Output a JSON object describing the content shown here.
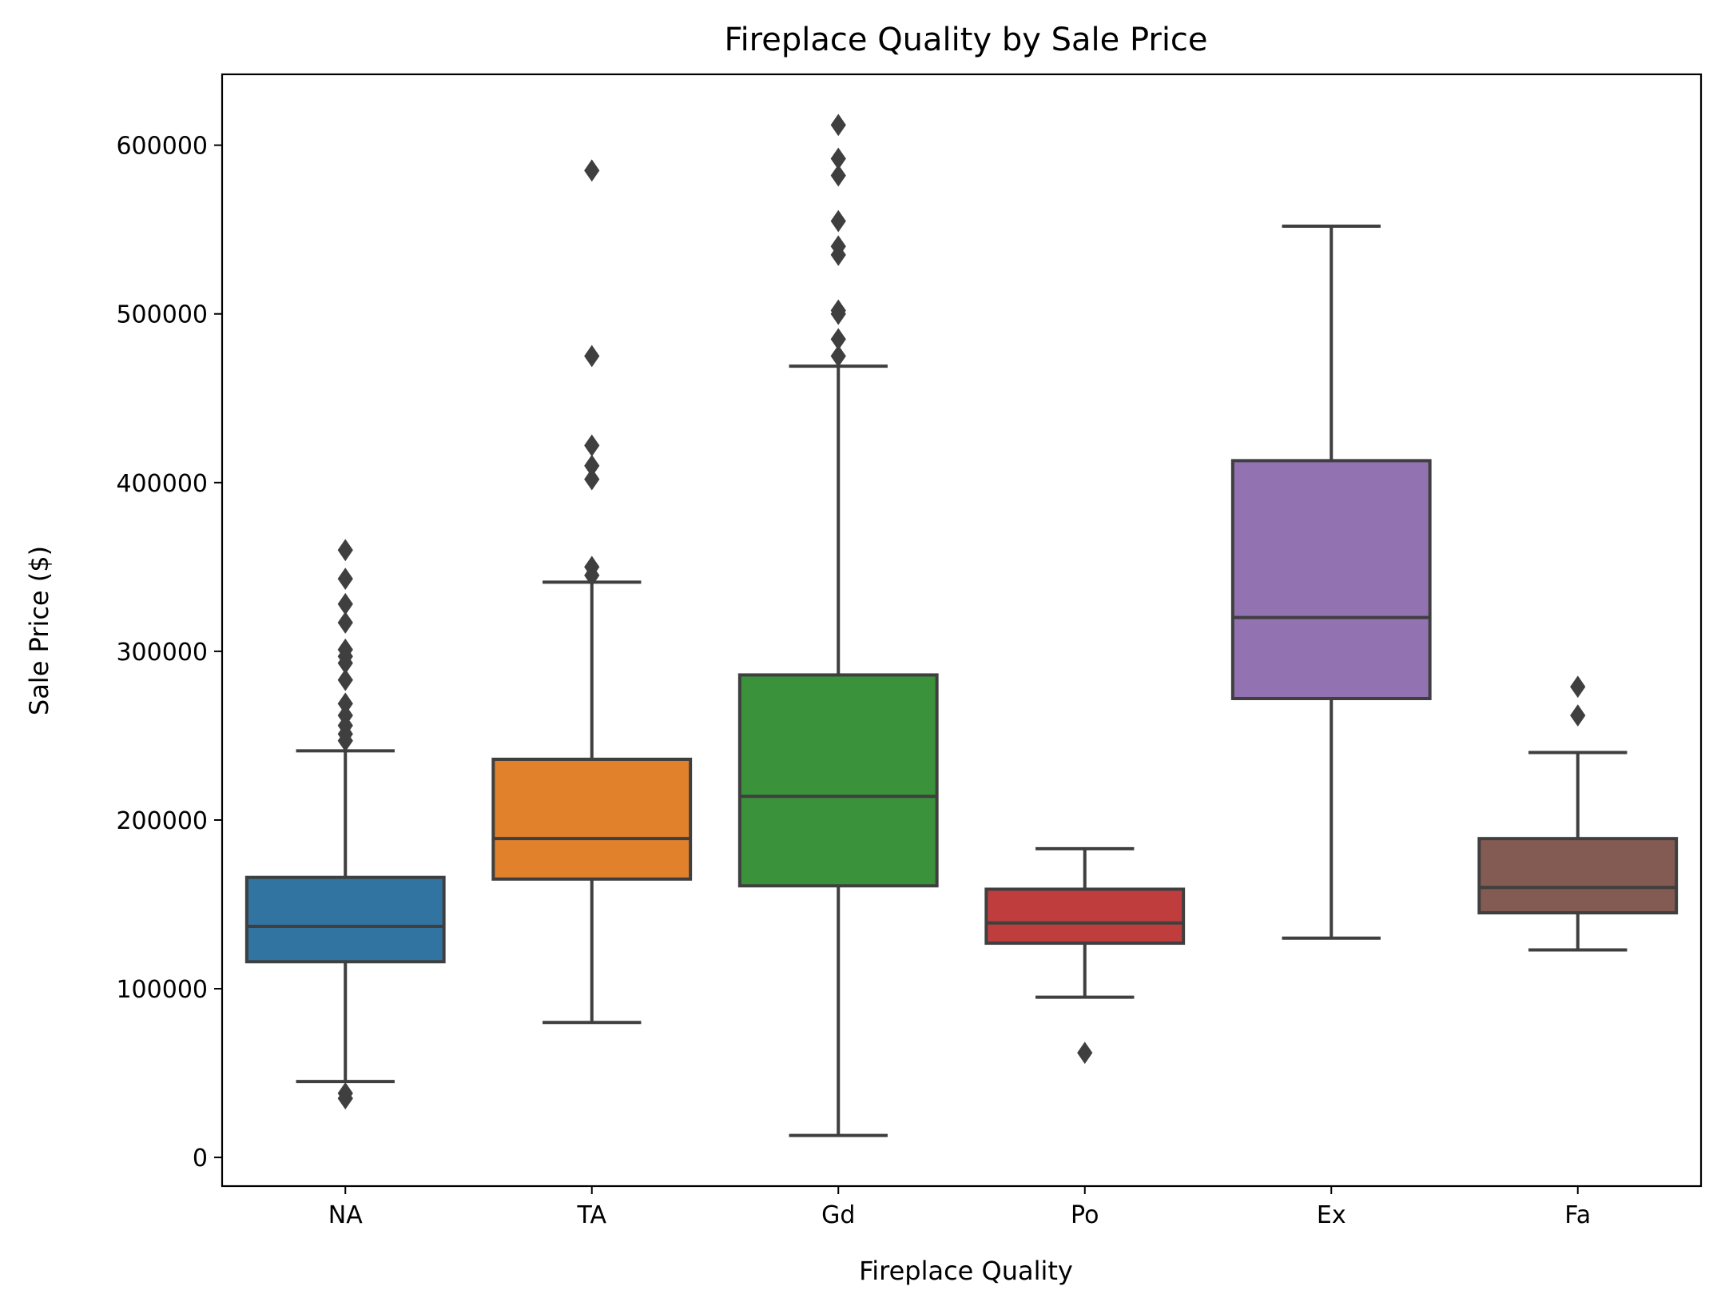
{
  "chart_data": {
    "type": "box",
    "title": "Fireplace Quality by Sale Price",
    "xlabel": "Fireplace Quality",
    "ylabel": "Sale Price ($)",
    "ylim": [
      -17000,
      642000
    ],
    "yticks": [
      0,
      100000,
      200000,
      300000,
      400000,
      500000,
      600000
    ],
    "ytick_labels": [
      "0",
      "100000",
      "200000",
      "300000",
      "400000",
      "500000",
      "600000"
    ],
    "grid": false,
    "categories": [
      "NA",
      "TA",
      "Gd",
      "Po",
      "Ex",
      "Fa"
    ],
    "boxes": [
      {
        "category": "NA",
        "color": "#3274a1",
        "whisker_low": 45000,
        "q1": 116000,
        "median": 137000,
        "q3": 166000,
        "whisker_high": 241000,
        "outliers": [
          35000,
          38000,
          247000,
          251000,
          256000,
          262000,
          269000,
          283000,
          293000,
          297000,
          301000,
          317000,
          328000,
          343000,
          360000
        ]
      },
      {
        "category": "TA",
        "color": "#e1812c",
        "whisker_low": 80000,
        "q1": 165000,
        "median": 189000,
        "q3": 236000,
        "whisker_high": 341000,
        "outliers": [
          345000,
          350000,
          402000,
          410000,
          422000,
          475000,
          585000
        ]
      },
      {
        "category": "Gd",
        "color": "#3a923a",
        "whisker_low": 13000,
        "q1": 161000,
        "median": 214000,
        "q3": 286000,
        "whisker_high": 469000,
        "outliers": [
          475000,
          485000,
          500000,
          502000,
          535000,
          540000,
          555000,
          582000,
          592000,
          612000
        ]
      },
      {
        "category": "Po",
        "color": "#c03d3e",
        "whisker_low": 95000,
        "q1": 127000,
        "median": 139000,
        "q3": 159000,
        "whisker_high": 183000,
        "outliers": [
          62000
        ]
      },
      {
        "category": "Ex",
        "color": "#9372b2",
        "whisker_low": 130000,
        "q1": 272000,
        "median": 320000,
        "q3": 413000,
        "whisker_high": 552000,
        "outliers": []
      },
      {
        "category": "Fa",
        "color": "#845b53",
        "whisker_low": 123000,
        "q1": 145000,
        "median": 160000,
        "q3": 189000,
        "whisker_high": 240000,
        "outliers": [
          262000,
          279000
        ]
      }
    ]
  }
}
